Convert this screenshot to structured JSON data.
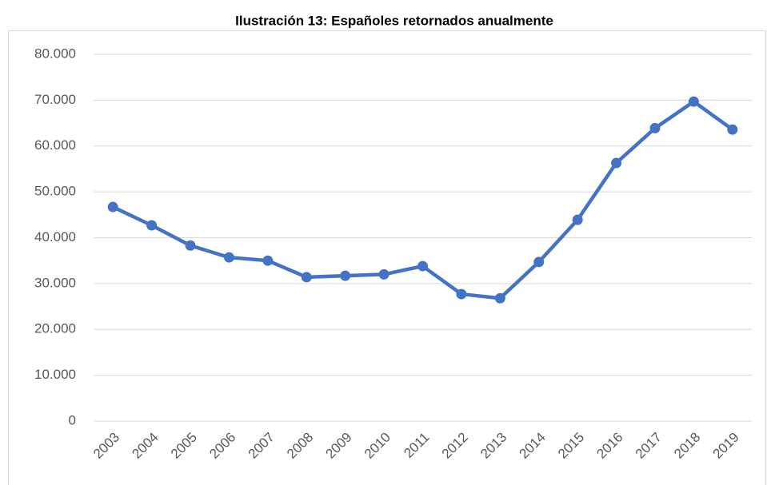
{
  "chart_data": {
    "type": "line",
    "title": "Ilustración 13: Españoles retornados anualmente",
    "categories": [
      "2003",
      "2004",
      "2005",
      "2006",
      "2007",
      "2008",
      "2009",
      "2010",
      "2011",
      "2012",
      "2013",
      "2014",
      "2015",
      "2016",
      "2017",
      "2018",
      "2019"
    ],
    "series": [
      {
        "color": "#4472c4",
        "values": [
          46700,
          42700,
          38300,
          35700,
          35000,
          31400,
          31700,
          32000,
          33800,
          27700,
          26800,
          34700,
          43900,
          56300,
          63900,
          69700,
          63600
        ]
      }
    ],
    "ylim": [
      0,
      80000
    ],
    "yticks": [
      0,
      {
        "value": 10000,
        "label": "10.000"
      },
      {
        "value": 20000,
        "label": "20.000"
      },
      {
        "value": 30000,
        "label": "30.000"
      },
      {
        "value": 40000,
        "label": "40.000"
      },
      {
        "value": 50000,
        "label": "50.000"
      },
      {
        "value": 60000,
        "label": "60.000"
      },
      {
        "value": 70000,
        "label": "70.000"
      },
      {
        "value": 80000,
        "label": "80.000"
      }
    ],
    "grid": true
  }
}
